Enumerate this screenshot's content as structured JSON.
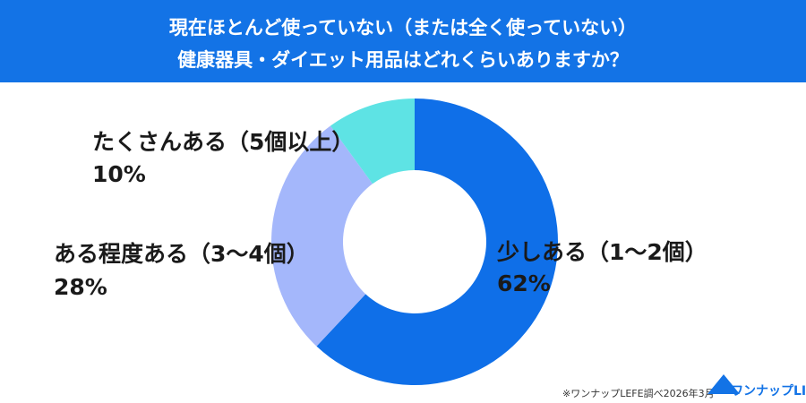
{
  "chart_data": {
    "type": "donut",
    "title": [
      "現在ほとんど使っていない（または全く使っていない）",
      "健康器具・ダイエット用品はどれくらいありますか？"
    ],
    "categories": [
      "少しある（1〜2個）",
      "ある程度ある（3〜4個）",
      "たくさんある（5個以上）"
    ],
    "values": [
      62,
      28,
      10
    ],
    "value_labels": [
      "62%",
      "28%",
      "10%"
    ],
    "colors": [
      "#0f6fe8",
      "#a4b7fb",
      "#5ee3e4"
    ],
    "note": "※ワンナップLEFE調べ2026年3月",
    "logo": "ワンナップLIFE"
  }
}
